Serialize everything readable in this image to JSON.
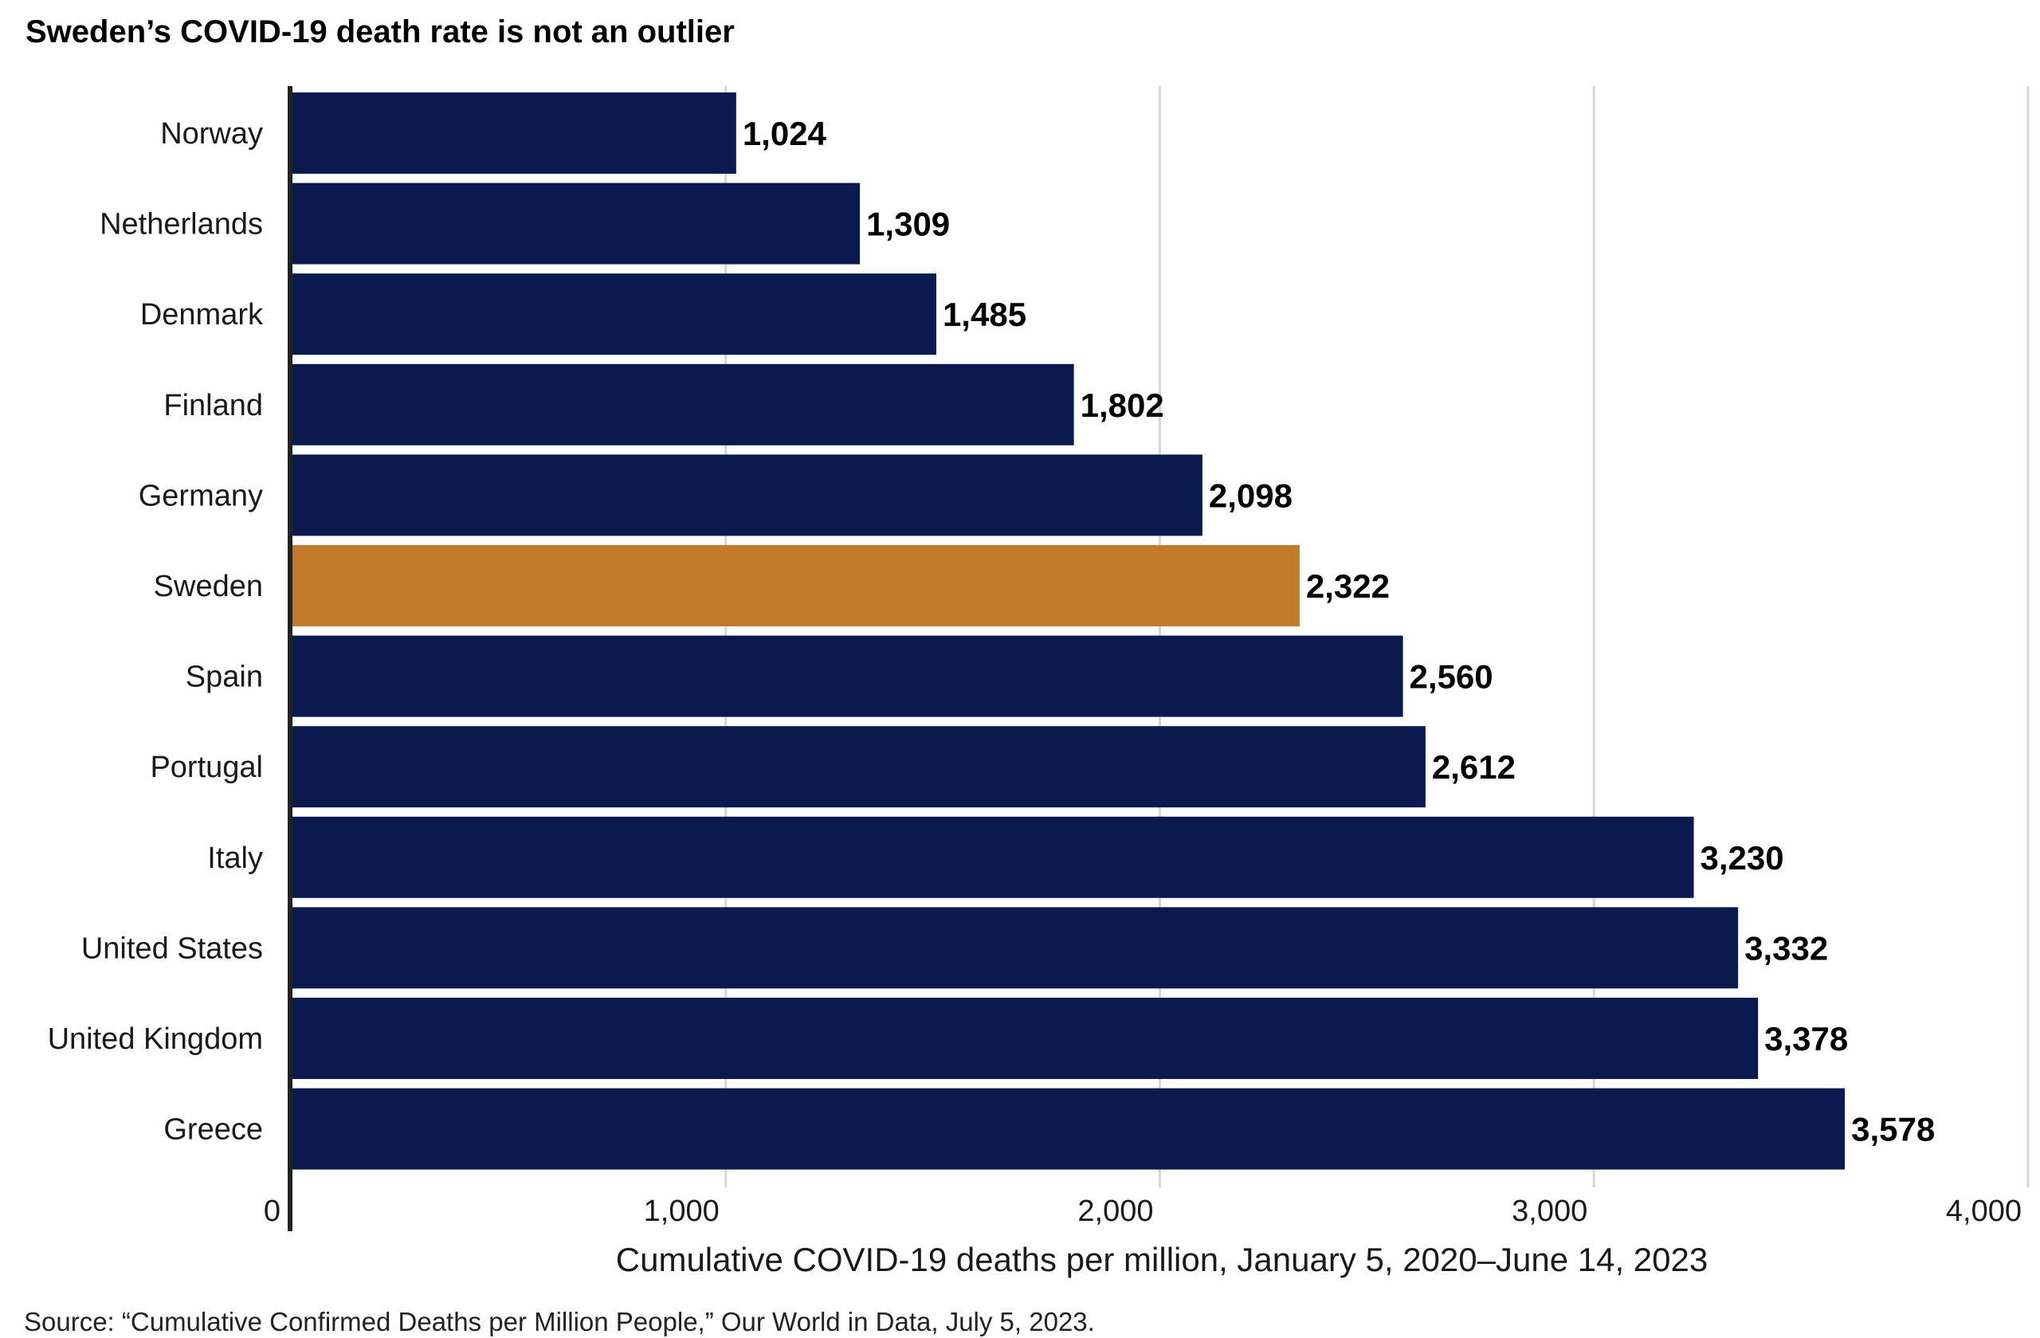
{
  "chart_data": {
    "type": "bar",
    "orientation": "horizontal",
    "title": "Sweden’s COVID-19 death rate is not an outlier",
    "xlabel": "Cumulative COVID-19 deaths per million, January 5, 2020–June 14, 2023",
    "ylabel": "",
    "categories": [
      "Norway",
      "Netherlands",
      "Denmark",
      "Finland",
      "Germany",
      "Sweden",
      "Spain",
      "Portugal",
      "Italy",
      "United States",
      "United Kingdom",
      "Greece"
    ],
    "values": [
      1024,
      1309,
      1485,
      1802,
      2098,
      2322,
      2560,
      2612,
      3230,
      3332,
      3378,
      3578
    ],
    "value_labels": [
      "1,024",
      "1,309",
      "1,485",
      "1,802",
      "2,098",
      "2,322",
      "2,560",
      "2,612",
      "3,230",
      "3,332",
      "3,378",
      "3,578"
    ],
    "xlim": [
      0,
      4000
    ],
    "ticks": [
      0,
      1000,
      2000,
      3000,
      4000
    ],
    "tick_labels": [
      "0",
      "1,000",
      "2,000",
      "3,000",
      "4,000"
    ],
    "grid": "vertical",
    "legend": "none",
    "highlight": "Sweden",
    "colors": {
      "bar": "#0a1a4e",
      "highlight": "#c07a2a",
      "grid": "#d6d6d6",
      "axis": "#222222"
    },
    "source": "Source: “Cumulative Confirmed Deaths per Million People,” Our World in Data, July 5, 2023."
  }
}
